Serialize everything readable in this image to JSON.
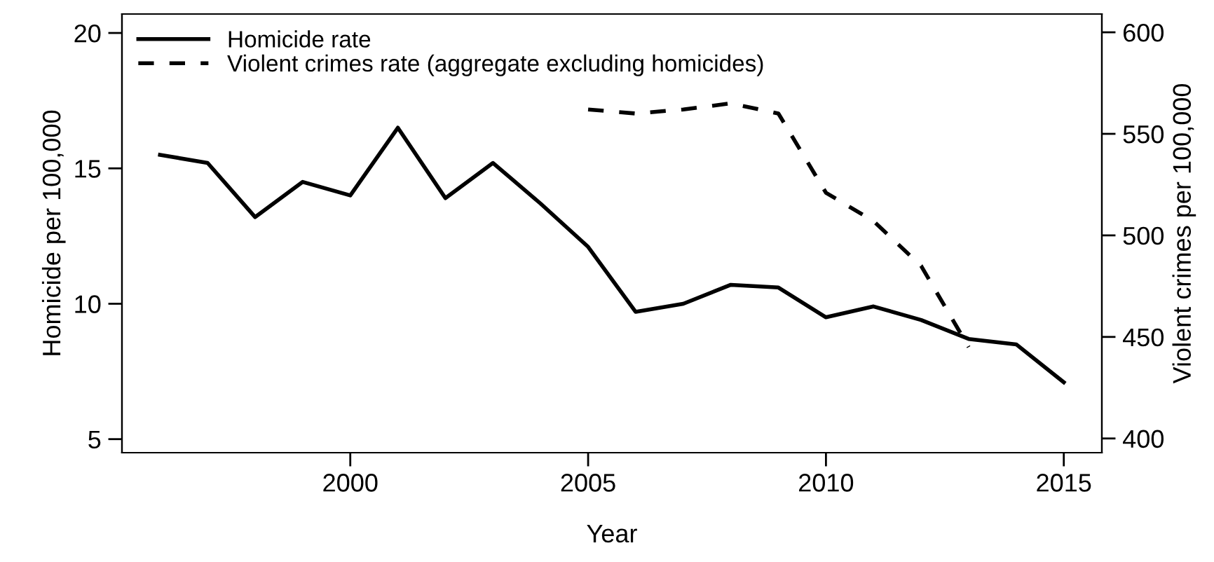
{
  "chart_data": {
    "type": "line",
    "xlabel": "Year",
    "ylabel": "Homicide per 100,000",
    "y2label": "Violent crimes per 100,000",
    "xlim": [
      1995.2,
      2015.8
    ],
    "xticks": [
      2000,
      2005,
      2010,
      2015
    ],
    "ylim": [
      4.5,
      20.7
    ],
    "yticks": [
      5,
      10,
      15,
      20
    ],
    "y2lim": [
      393,
      609
    ],
    "y2ticks": [
      400,
      450,
      500,
      550,
      600
    ],
    "grid": false,
    "legend": "top left",
    "marker": "none",
    "series": [
      {
        "name": "Homicide rate",
        "color": "#000000",
        "line_style": "solid",
        "x": [
          1996,
          1997,
          1998,
          1999,
          2000,
          2001,
          2002,
          2003,
          2004,
          2005,
          2006,
          2007,
          2008,
          2009,
          2010,
          2011,
          2012,
          2013,
          2014,
          2015
        ],
        "values": [
          15.5,
          15.2,
          13.2,
          14.5,
          14.0,
          16.5,
          13.9,
          15.2,
          13.7,
          12.1,
          9.7,
          10.0,
          10.7,
          10.6,
          9.5,
          9.9,
          9.4,
          8.7,
          8.5,
          7.1
        ]
      },
      {
        "name": "Violent crimes rate (aggregate excluding homicides)",
        "color": "#000000",
        "line_style": "dashed",
        "axis": "y2",
        "x": [
          2005,
          2006,
          2007,
          2008,
          2009,
          2010,
          2011,
          2012,
          2013
        ],
        "values": [
          562,
          560,
          562,
          565,
          560,
          521,
          507,
          485,
          445
        ]
      }
    ]
  }
}
